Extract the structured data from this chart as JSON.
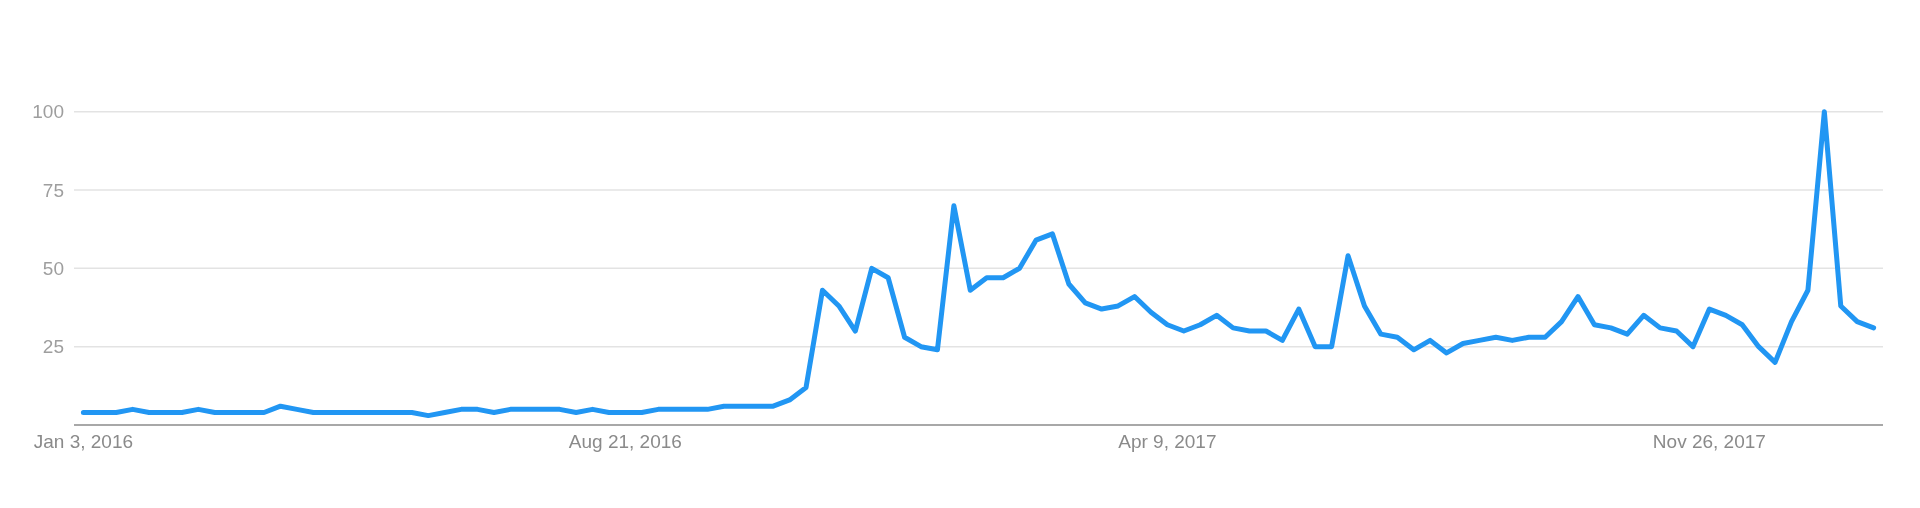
{
  "chart_data": {
    "type": "line",
    "x": [
      "2016-01-03",
      "2016-01-10",
      "2016-01-17",
      "2016-01-24",
      "2016-01-31",
      "2016-02-07",
      "2016-02-14",
      "2016-02-21",
      "2016-02-28",
      "2016-03-06",
      "2016-03-13",
      "2016-03-20",
      "2016-03-27",
      "2016-04-03",
      "2016-04-10",
      "2016-04-17",
      "2016-04-24",
      "2016-05-01",
      "2016-05-08",
      "2016-05-15",
      "2016-05-22",
      "2016-05-29",
      "2016-06-05",
      "2016-06-12",
      "2016-06-19",
      "2016-06-26",
      "2016-07-03",
      "2016-07-10",
      "2016-07-17",
      "2016-07-24",
      "2016-07-31",
      "2016-08-07",
      "2016-08-14",
      "2016-08-21",
      "2016-08-28",
      "2016-09-04",
      "2016-09-11",
      "2016-09-18",
      "2016-09-25",
      "2016-10-02",
      "2016-10-09",
      "2016-10-16",
      "2016-10-23",
      "2016-10-30",
      "2016-11-06",
      "2016-11-13",
      "2016-11-20",
      "2016-11-27",
      "2016-12-04",
      "2016-12-11",
      "2016-12-18",
      "2016-12-25",
      "2017-01-01",
      "2017-01-08",
      "2017-01-15",
      "2017-01-22",
      "2017-01-29",
      "2017-02-05",
      "2017-02-12",
      "2017-02-19",
      "2017-02-26",
      "2017-03-05",
      "2017-03-12",
      "2017-03-19",
      "2017-03-26",
      "2017-04-02",
      "2017-04-09",
      "2017-04-16",
      "2017-04-23",
      "2017-04-30",
      "2017-05-07",
      "2017-05-14",
      "2017-05-21",
      "2017-05-28",
      "2017-06-04",
      "2017-06-11",
      "2017-06-18",
      "2017-06-25",
      "2017-07-02",
      "2017-07-09",
      "2017-07-16",
      "2017-07-23",
      "2017-07-30",
      "2017-08-06",
      "2017-08-13",
      "2017-08-20",
      "2017-08-27",
      "2017-09-03",
      "2017-09-10",
      "2017-09-17",
      "2017-09-24",
      "2017-10-01",
      "2017-10-08",
      "2017-10-15",
      "2017-10-22",
      "2017-10-29",
      "2017-11-05",
      "2017-11-12",
      "2017-11-19",
      "2017-11-26",
      "2017-12-03",
      "2017-12-10",
      "2017-12-17",
      "2017-12-24",
      "2017-12-31",
      "2018-01-07",
      "2018-01-14",
      "2018-01-21",
      "2018-01-28",
      "2018-02-04"
    ],
    "series": [
      {
        "color": "#2196f3",
        "values": [
          4,
          4,
          4,
          5,
          4,
          4,
          4,
          5,
          4,
          4,
          4,
          4,
          6,
          5,
          4,
          4,
          4,
          4,
          4,
          4,
          4,
          3,
          4,
          5,
          5,
          4,
          5,
          5,
          5,
          5,
          4,
          5,
          4,
          4,
          4,
          5,
          5,
          5,
          5,
          6,
          6,
          6,
          6,
          8,
          12,
          43,
          38,
          30,
          50,
          47,
          28,
          25,
          24,
          70,
          43,
          47,
          47,
          50,
          59,
          61,
          45,
          39,
          37,
          38,
          41,
          36,
          32,
          30,
          32,
          35,
          31,
          30,
          30,
          27,
          37,
          25,
          25,
          54,
          38,
          29,
          28,
          24,
          27,
          23,
          26,
          27,
          28,
          27,
          28,
          28,
          33,
          41,
          32,
          31,
          29,
          35,
          31,
          30,
          25,
          37,
          35,
          32,
          25,
          20,
          33,
          43,
          100,
          38,
          33,
          31
        ]
      }
    ],
    "xlim": [
      "2015-12-30",
      "2018-02-08"
    ],
    "xticks": [
      {
        "value": "2016-01-03",
        "label": "Jan 3, 2016"
      },
      {
        "value": "2016-08-21",
        "label": "Aug 21, 2016"
      },
      {
        "value": "2017-04-09",
        "label": "Apr 9, 2017"
      },
      {
        "value": "2017-11-26",
        "label": "Nov 26, 2017"
      }
    ],
    "ylim": [
      0,
      100
    ],
    "yticks": [
      25,
      50,
      75,
      100
    ],
    "grid": "y",
    "line_style": "solid"
  }
}
